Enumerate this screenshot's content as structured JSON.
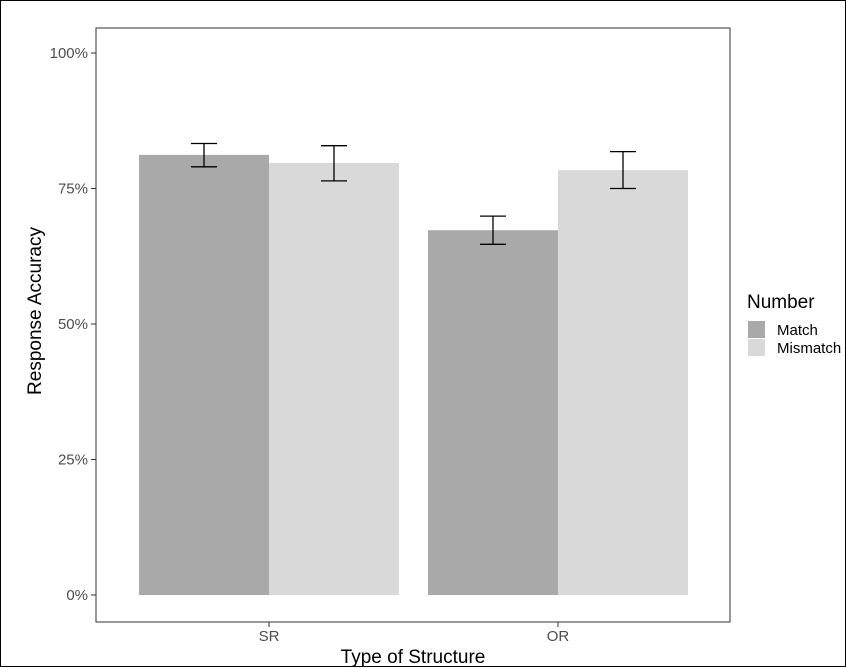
{
  "chart_data": {
    "type": "bar",
    "title": "",
    "xlabel": "Type of Structure",
    "ylabel": "Response Accuracy",
    "categories": [
      "SR",
      "OR"
    ],
    "series": [
      {
        "name": "Match",
        "color": "#a9a9a9",
        "values": [
          81.2,
          67.3
        ],
        "error_low": [
          79.0,
          64.7
        ],
        "error_high": [
          83.3,
          69.9
        ]
      },
      {
        "name": "Mismatch",
        "color": "#d9d9d9",
        "values": [
          79.7,
          78.4
        ],
        "error_low": [
          76.4,
          75.0
        ],
        "error_high": [
          82.9,
          81.8
        ]
      }
    ],
    "ylim": [
      0,
      100
    ],
    "yticks": [
      0,
      25,
      50,
      75,
      100
    ],
    "ytick_labels": [
      "0%",
      "25%",
      "50%",
      "75%",
      "100%"
    ],
    "legend": {
      "title": "Number",
      "position": "right"
    },
    "grid": false
  }
}
